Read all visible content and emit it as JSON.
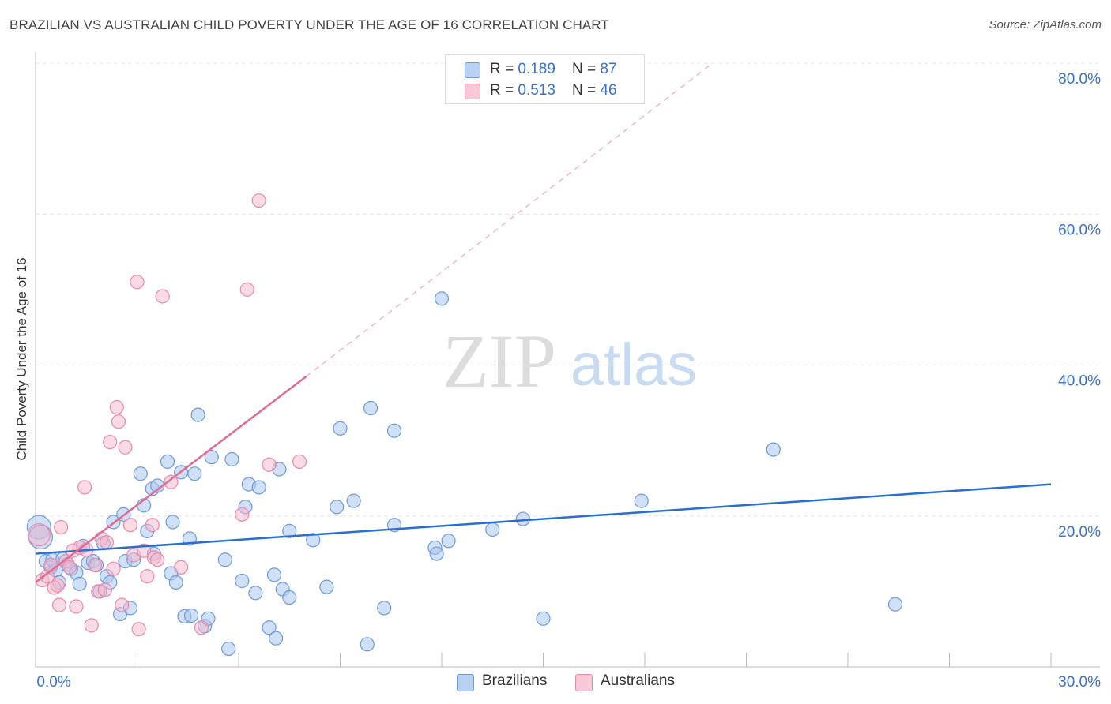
{
  "title": "BRAZILIAN VS AUSTRALIAN CHILD POVERTY UNDER THE AGE OF 16 CORRELATION CHART",
  "source": "Source: ZipAtlas.com",
  "watermark": {
    "zip": "ZIP",
    "atlas": "atlas"
  },
  "colors": {
    "blue_fill": "#a9c6ef",
    "blue_stroke": "#6f9ad8",
    "blue_line": "#2a6fcf",
    "pink_fill": "#f5b8cb",
    "pink_stroke": "#e98aa8",
    "pink_line": "#e06b93",
    "tick_text": "#3a72c8",
    "grid": "#e3e3e3"
  },
  "legend_top": [
    {
      "r_label": "R = ",
      "r_value": "0.189",
      "n_label": "N = ",
      "n_value": "87"
    },
    {
      "r_label": "R = ",
      "r_value": "0.513",
      "n_label": "N = ",
      "n_value": "46"
    }
  ],
  "legend_bottom": [
    {
      "label": "Brazilians"
    },
    {
      "label": "Australians"
    }
  ],
  "chart_data": {
    "type": "scatter",
    "title": "BRAZILIAN VS AUSTRALIAN CHILD POVERTY UNDER THE AGE OF 16 CORRELATION CHART",
    "xlabel": "",
    "ylabel": "Child Poverty Under the Age of 16",
    "xlim": [
      0,
      30
    ],
    "ylim": [
      0,
      80
    ],
    "x_ticks_labeled": [
      "0.0%",
      "30.0%"
    ],
    "y_ticks_labeled": [
      "20.0%",
      "40.0%",
      "60.0%",
      "80.0%"
    ],
    "y_tick_values": [
      20,
      40,
      60,
      80
    ],
    "grid": true,
    "series": [
      {
        "name": "Brazilians",
        "r": 0.189,
        "n": 87,
        "trend": {
          "x": [
            0,
            30
          ],
          "y": [
            15.0,
            24.2
          ]
        },
        "points": [
          {
            "x": 0.1,
            "y": 18.5,
            "big": true
          },
          {
            "x": 0.15,
            "y": 17.2,
            "big": true
          },
          {
            "x": 0.3,
            "y": 14.0
          },
          {
            "x": 0.45,
            "y": 13.2
          },
          {
            "x": 0.5,
            "y": 14.2
          },
          {
            "x": 0.6,
            "y": 12.8
          },
          {
            "x": 0.7,
            "y": 11.2
          },
          {
            "x": 0.8,
            "y": 14.3
          },
          {
            "x": 0.95,
            "y": 13.6
          },
          {
            "x": 1.05,
            "y": 13.0
          },
          {
            "x": 1.2,
            "y": 12.5
          },
          {
            "x": 1.3,
            "y": 11.0
          },
          {
            "x": 1.4,
            "y": 16.0
          },
          {
            "x": 1.55,
            "y": 13.8
          },
          {
            "x": 1.7,
            "y": 14.0
          },
          {
            "x": 1.8,
            "y": 13.5
          },
          {
            "x": 1.9,
            "y": 10.0
          },
          {
            "x": 2.0,
            "y": 16.4
          },
          {
            "x": 2.1,
            "y": 12.0
          },
          {
            "x": 2.2,
            "y": 11.2
          },
          {
            "x": 2.3,
            "y": 19.2
          },
          {
            "x": 2.5,
            "y": 7.0
          },
          {
            "x": 2.6,
            "y": 20.2
          },
          {
            "x": 2.65,
            "y": 14.0
          },
          {
            "x": 2.8,
            "y": 7.8
          },
          {
            "x": 2.9,
            "y": 14.2
          },
          {
            "x": 3.1,
            "y": 25.6
          },
          {
            "x": 3.2,
            "y": 21.4
          },
          {
            "x": 3.3,
            "y": 18.0
          },
          {
            "x": 3.45,
            "y": 23.6
          },
          {
            "x": 3.5,
            "y": 15.0
          },
          {
            "x": 3.6,
            "y": 24.0
          },
          {
            "x": 3.9,
            "y": 27.2
          },
          {
            "x": 4.0,
            "y": 12.4
          },
          {
            "x": 4.05,
            "y": 19.2
          },
          {
            "x": 4.15,
            "y": 11.2
          },
          {
            "x": 4.3,
            "y": 25.8
          },
          {
            "x": 4.4,
            "y": 6.7
          },
          {
            "x": 4.55,
            "y": 17.0
          },
          {
            "x": 4.6,
            "y": 6.8
          },
          {
            "x": 4.7,
            "y": 25.6
          },
          {
            "x": 4.8,
            "y": 33.4
          },
          {
            "x": 5.0,
            "y": 5.4
          },
          {
            "x": 5.1,
            "y": 6.4
          },
          {
            "x": 5.2,
            "y": 27.8
          },
          {
            "x": 5.6,
            "y": 14.2
          },
          {
            "x": 5.7,
            "y": 2.4
          },
          {
            "x": 5.8,
            "y": 27.5
          },
          {
            "x": 6.1,
            "y": 11.4
          },
          {
            "x": 6.2,
            "y": 21.2
          },
          {
            "x": 6.3,
            "y": 24.2
          },
          {
            "x": 6.5,
            "y": 9.8
          },
          {
            "x": 6.6,
            "y": 23.8
          },
          {
            "x": 6.9,
            "y": 5.2
          },
          {
            "x": 7.05,
            "y": 12.2
          },
          {
            "x": 7.1,
            "y": 3.8
          },
          {
            "x": 7.2,
            "y": 26.2
          },
          {
            "x": 7.3,
            "y": 10.3
          },
          {
            "x": 7.5,
            "y": 9.2
          },
          {
            "x": 7.5,
            "y": 18.0
          },
          {
            "x": 8.2,
            "y": 16.8
          },
          {
            "x": 8.6,
            "y": 10.6
          },
          {
            "x": 8.9,
            "y": 21.2
          },
          {
            "x": 9.0,
            "y": 31.6
          },
          {
            "x": 9.4,
            "y": 22.0
          },
          {
            "x": 9.8,
            "y": 3.0
          },
          {
            "x": 9.9,
            "y": 34.3
          },
          {
            "x": 10.3,
            "y": 7.8
          },
          {
            "x": 10.6,
            "y": 18.8
          },
          {
            "x": 10.6,
            "y": 31.3
          },
          {
            "x": 11.8,
            "y": 15.8
          },
          {
            "x": 11.85,
            "y": 15.0
          },
          {
            "x": 12.0,
            "y": 48.8
          },
          {
            "x": 12.2,
            "y": 16.7
          },
          {
            "x": 13.5,
            "y": 18.2
          },
          {
            "x": 14.4,
            "y": 19.6
          },
          {
            "x": 15.0,
            "y": 6.4
          },
          {
            "x": 17.9,
            "y": 22.0
          },
          {
            "x": 21.8,
            "y": 28.8
          },
          {
            "x": 25.4,
            "y": 8.3
          }
        ]
      },
      {
        "name": "Australians",
        "r": 0.513,
        "n": 46,
        "trend": {
          "x": [
            0,
            8.0
          ],
          "y": [
            11.2,
            38.5
          ]
        },
        "trend_extension": {
          "x": [
            8.0,
            20.0
          ],
          "y": [
            38.5,
            80.0
          ]
        },
        "points": [
          {
            "x": 0.1,
            "y": 17.5,
            "big": true
          },
          {
            "x": 0.2,
            "y": 11.5
          },
          {
            "x": 0.35,
            "y": 12.0
          },
          {
            "x": 0.45,
            "y": 13.5
          },
          {
            "x": 0.55,
            "y": 10.5
          },
          {
            "x": 0.65,
            "y": 10.8
          },
          {
            "x": 0.7,
            "y": 8.2
          },
          {
            "x": 0.75,
            "y": 18.5
          },
          {
            "x": 0.9,
            "y": 14.0
          },
          {
            "x": 1.0,
            "y": 13.2
          },
          {
            "x": 1.1,
            "y": 15.4
          },
          {
            "x": 1.2,
            "y": 8.0
          },
          {
            "x": 1.3,
            "y": 15.8
          },
          {
            "x": 1.45,
            "y": 23.8
          },
          {
            "x": 1.5,
            "y": 15.5
          },
          {
            "x": 1.65,
            "y": 5.5
          },
          {
            "x": 1.75,
            "y": 13.5
          },
          {
            "x": 1.85,
            "y": 10.0
          },
          {
            "x": 1.95,
            "y": 17.0
          },
          {
            "x": 2.05,
            "y": 10.2
          },
          {
            "x": 2.1,
            "y": 16.5
          },
          {
            "x": 2.2,
            "y": 29.8
          },
          {
            "x": 2.3,
            "y": 13.0
          },
          {
            "x": 2.4,
            "y": 34.4
          },
          {
            "x": 2.45,
            "y": 32.5
          },
          {
            "x": 2.55,
            "y": 8.2
          },
          {
            "x": 2.65,
            "y": 29.1
          },
          {
            "x": 2.8,
            "y": 18.8
          },
          {
            "x": 2.9,
            "y": 14.8
          },
          {
            "x": 3.05,
            "y": 5.0
          },
          {
            "x": 3.0,
            "y": 51.0
          },
          {
            "x": 3.2,
            "y": 15.4
          },
          {
            "x": 3.3,
            "y": 12.0
          },
          {
            "x": 3.5,
            "y": 14.5
          },
          {
            "x": 3.45,
            "y": 18.8
          },
          {
            "x": 3.6,
            "y": 14.2
          },
          {
            "x": 3.75,
            "y": 49.1
          },
          {
            "x": 4.0,
            "y": 24.5
          },
          {
            "x": 4.3,
            "y": 13.2
          },
          {
            "x": 4.9,
            "y": 5.2
          },
          {
            "x": 6.1,
            "y": 20.2
          },
          {
            "x": 6.25,
            "y": 50.0
          },
          {
            "x": 6.6,
            "y": 61.8
          },
          {
            "x": 6.9,
            "y": 26.8
          },
          {
            "x": 7.8,
            "y": 27.2
          }
        ]
      }
    ]
  }
}
